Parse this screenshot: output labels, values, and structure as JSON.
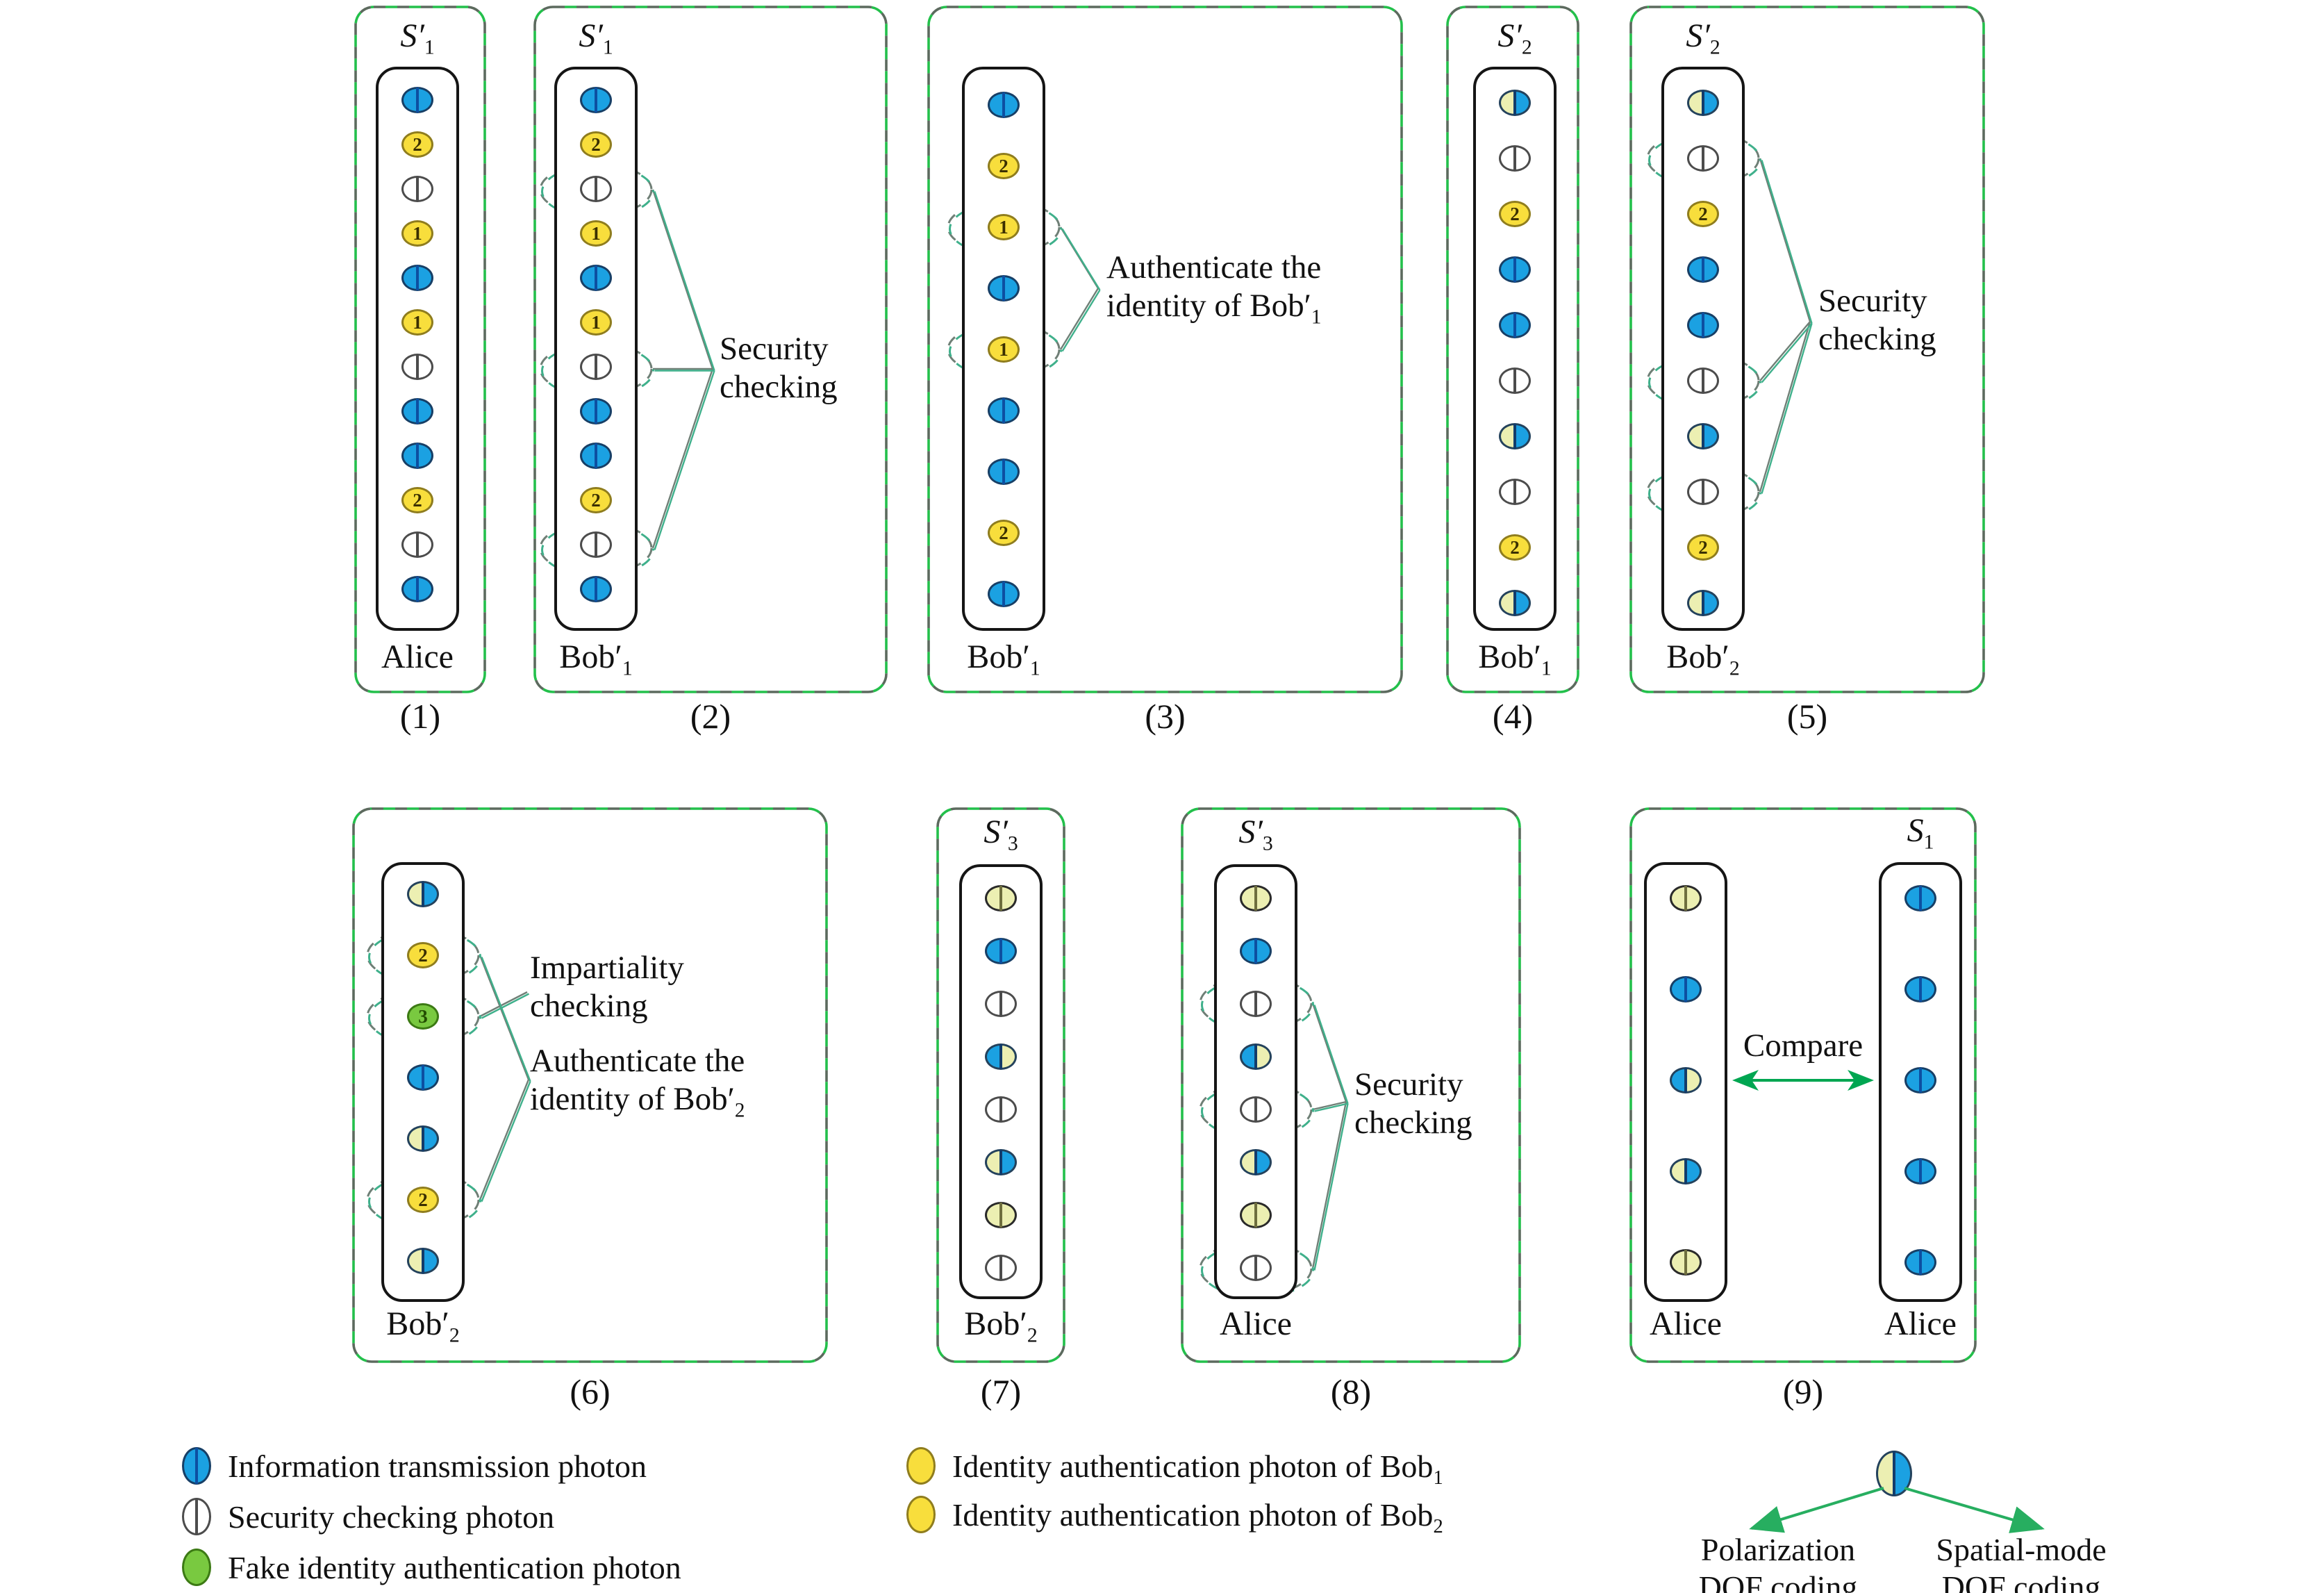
{
  "colors": {
    "photon_blue": "#1ba1e2",
    "photon_blue_stripe": "#0d4fa1",
    "photon_yellow": "#f8de3c",
    "photon_pale_yellow": "#ecefb2",
    "photon_green": "#79c940",
    "photon_white": "#ffffff",
    "frame_green": "#23c04b",
    "frame_gray": "#5c6a5e",
    "highlight_teal": "#3fb08b",
    "connector_gray": "#6f7f76",
    "compare_arrow_green": "#00a651",
    "legend_arrow_green": "#27ae60",
    "text": "#111111"
  },
  "photon_types": {
    "it": {
      "name": "information-transmission",
      "number": ""
    },
    "sc": {
      "name": "security-checking",
      "number": ""
    },
    "b1": {
      "name": "identity-authentication-bob1",
      "number": "1"
    },
    "b2": {
      "name": "identity-authentication-bob2",
      "number": "2"
    },
    "fk": {
      "name": "fake-identity-authentication",
      "number": "3"
    },
    "py": {
      "name": "pale-dof",
      "number": ""
    },
    "by": {
      "name": "blue-left-pale-right-dof",
      "number": ""
    },
    "yb": {
      "name": "pale-left-blue-right-dof",
      "number": ""
    }
  },
  "panels": [
    {
      "caption": "(1)",
      "title": {
        "base": "S′",
        "sub": "1"
      },
      "owner": {
        "base": "Alice",
        "sub": ""
      },
      "photons": [
        "it",
        "b2",
        "sc",
        "b1",
        "it",
        "b1",
        "sc",
        "it",
        "it",
        "b2",
        "sc",
        "it"
      ]
    },
    {
      "caption": "(2)",
      "title": {
        "base": "S′",
        "sub": "1"
      },
      "owner": {
        "base": "Bob′",
        "sub": "1"
      },
      "photons": [
        "it",
        "b2",
        "sc",
        "b1",
        "it",
        "b1",
        "sc",
        "it",
        "it",
        "b2",
        "sc",
        "it"
      ],
      "note": {
        "lines": [
          "Security",
          "checking"
        ],
        "sub": ""
      }
    },
    {
      "caption": "(3)",
      "owner": {
        "base": "Bob′",
        "sub": "1"
      },
      "photons": [
        "it",
        "b2",
        "b1",
        "it",
        "b1",
        "it",
        "it",
        "b2",
        "it"
      ],
      "note": {
        "lines": [
          "Authenticate the",
          "identity of Bob′"
        ],
        "sub": "1"
      }
    },
    {
      "caption": "(4)",
      "title": {
        "base": "S′",
        "sub": "2"
      },
      "owner": {
        "base": "Bob′",
        "sub": "1"
      },
      "photons": [
        "yb",
        "sc",
        "b2",
        "it",
        "it",
        "sc",
        "yb",
        "sc",
        "b2",
        "yb"
      ]
    },
    {
      "caption": "(5)",
      "title": {
        "base": "S′",
        "sub": "2"
      },
      "owner": {
        "base": "Bob′",
        "sub": "2"
      },
      "photons": [
        "yb",
        "sc",
        "b2",
        "it",
        "it",
        "sc",
        "yb",
        "sc",
        "b2",
        "yb"
      ],
      "note": {
        "lines": [
          "Security",
          "checking"
        ],
        "sub": ""
      }
    },
    {
      "caption": "(6)",
      "owner": {
        "base": "Bob′",
        "sub": "2"
      },
      "photons": [
        "yb",
        "b2",
        "fk",
        "it",
        "yb",
        "b2",
        "yb"
      ],
      "note_a": {
        "lines": [
          "Impartiality",
          "checking"
        ],
        "sub": ""
      },
      "note_b": {
        "lines": [
          "Authenticate the",
          "identity of Bob′"
        ],
        "sub": "2"
      }
    },
    {
      "caption": "(7)",
      "title": {
        "base": "S′",
        "sub": "3"
      },
      "owner": {
        "base": "Bob′",
        "sub": "2"
      },
      "photons": [
        "py",
        "it",
        "sc",
        "by",
        "sc",
        "yb",
        "py",
        "sc"
      ]
    },
    {
      "caption": "(8)",
      "title": {
        "base": "S′",
        "sub": "3"
      },
      "owner": {
        "base": "Alice",
        "sub": ""
      },
      "photons": [
        "py",
        "it",
        "sc",
        "by",
        "sc",
        "yb",
        "py",
        "sc"
      ],
      "note": {
        "lines": [
          "Security",
          "checking"
        ],
        "sub": ""
      }
    },
    {
      "caption": "(9)",
      "compare": "Compare",
      "left": {
        "owner": {
          "base": "Alice",
          "sub": ""
        },
        "photons": [
          "py",
          "it",
          "by",
          "yb",
          "py"
        ]
      },
      "right": {
        "title": {
          "base": "S",
          "sub": "1"
        },
        "owner": {
          "base": "Alice",
          "sub": ""
        },
        "photons": [
          "it",
          "it",
          "it",
          "it",
          "it"
        ]
      }
    }
  ],
  "legend": {
    "col1": [
      {
        "type": "it",
        "label": "Information transmission photon",
        "sub": ""
      },
      {
        "type": "sc",
        "label": "Security checking photon",
        "sub": ""
      },
      {
        "type": "fk",
        "label": "Fake identity authentication photon",
        "sub": ""
      }
    ],
    "col2": [
      {
        "type": "b1",
        "label": "Identity authentication photon of Bob",
        "sub": "1"
      },
      {
        "type": "b2",
        "label": "Identity authentication photon of Bob",
        "sub": "2"
      }
    ],
    "dof": {
      "left_lines": [
        "Polarization",
        "DOF coding"
      ],
      "right_lines": [
        "Spatial-mode",
        "DOF coding"
      ]
    }
  }
}
